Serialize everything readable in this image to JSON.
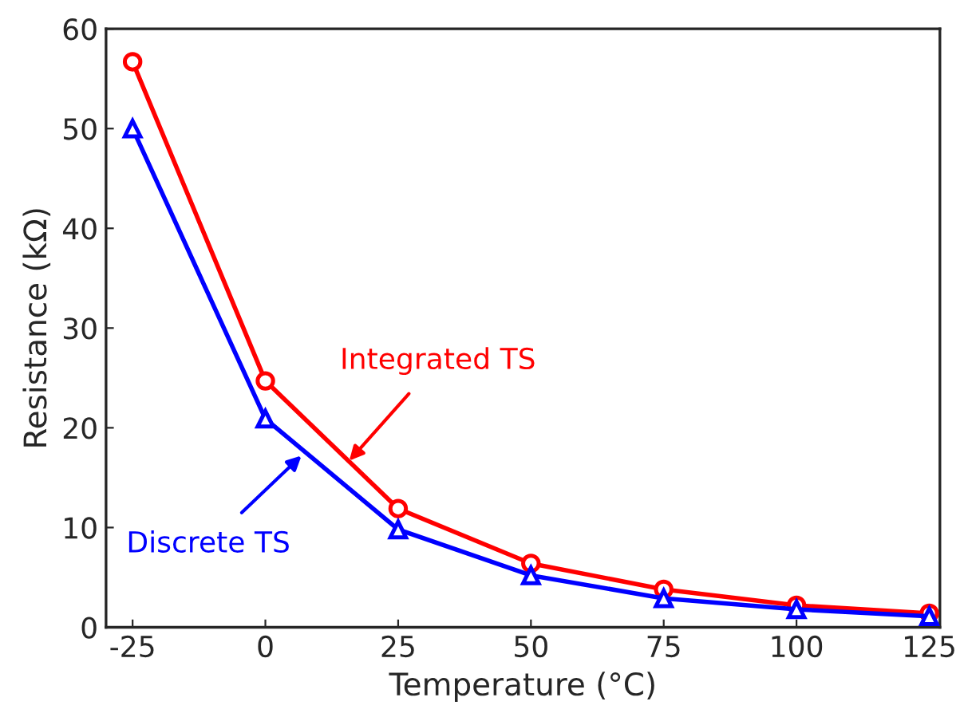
{
  "chart_data": {
    "type": "line",
    "xlabel": "Temperature (°C)",
    "ylabel": "Resistance (kΩ)",
    "x": [
      -25,
      0,
      25,
      50,
      75,
      100,
      125
    ],
    "series": [
      {
        "color": "#ff0000",
        "marker": "circle",
        "values": [
          56.7,
          24.7,
          11.9,
          6.4,
          3.8,
          2.2,
          1.4
        ]
      },
      {
        "color": "#0000ff",
        "marker": "triangle",
        "values": [
          50.0,
          20.9,
          9.8,
          5.2,
          2.9,
          1.8,
          1.1
        ]
      }
    ],
    "annotations": [
      {
        "text": "Integrated TS",
        "x": 15.8,
        "y": 16.7
      },
      {
        "text": "Discrete TS",
        "x": 6.8,
        "y": 17.2
      }
    ],
    "xlim": [
      -30,
      127
    ],
    "ylim": [
      0,
      60
    ],
    "xticks": [
      -25,
      0,
      25,
      50,
      75,
      100,
      125
    ],
    "yticks": [
      0,
      10,
      20,
      30,
      40,
      50,
      60
    ],
    "grid": false,
    "legend": false,
    "line_style": "solid"
  }
}
